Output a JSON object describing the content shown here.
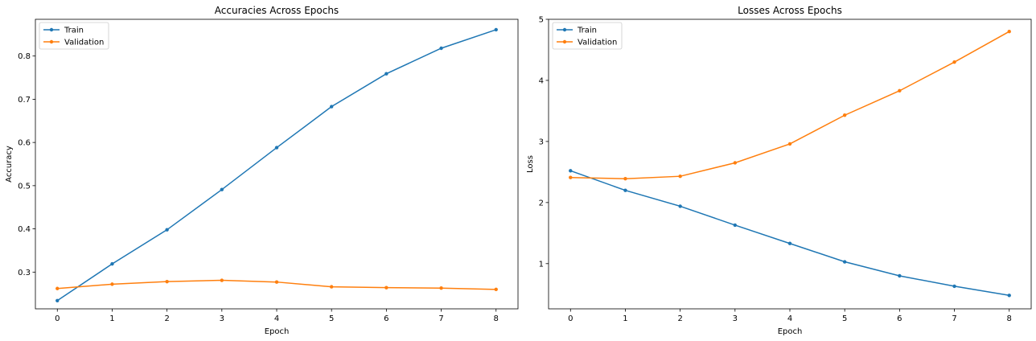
{
  "chart_data": [
    {
      "type": "line",
      "title": "Accuracies Across Epochs",
      "xlabel": "Epoch",
      "ylabel": "Accuracy",
      "x": [
        0,
        1,
        2,
        3,
        4,
        5,
        6,
        7,
        8
      ],
      "xlim": [
        -0.4,
        8.4
      ],
      "ylim": [
        0.215,
        0.885
      ],
      "xticks": [
        0,
        1,
        2,
        3,
        4,
        5,
        6,
        7,
        8
      ],
      "yticks": [
        0.3,
        0.4,
        0.5,
        0.6,
        0.7,
        0.8
      ],
      "grid": false,
      "legend_position": "top-left",
      "series": [
        {
          "name": "Train",
          "color": "#1f77b4",
          "values": [
            0.234,
            0.319,
            0.398,
            0.491,
            0.588,
            0.683,
            0.759,
            0.818,
            0.861
          ]
        },
        {
          "name": "Validation",
          "color": "#ff7f0e",
          "values": [
            0.262,
            0.272,
            0.278,
            0.281,
            0.277,
            0.266,
            0.264,
            0.263,
            0.26
          ]
        }
      ]
    },
    {
      "type": "line",
      "title": "Losses Across Epochs",
      "xlabel": "Epoch",
      "ylabel": "Loss",
      "x": [
        0,
        1,
        2,
        3,
        4,
        5,
        6,
        7,
        8
      ],
      "xlim": [
        -0.4,
        8.4
      ],
      "ylim": [
        0.26,
        5.0
      ],
      "xticks": [
        0,
        1,
        2,
        3,
        4,
        5,
        6,
        7,
        8
      ],
      "yticks": [
        1,
        2,
        3,
        4,
        5
      ],
      "grid": false,
      "legend_position": "top-left",
      "series": [
        {
          "name": "Train",
          "color": "#1f77b4",
          "values": [
            2.52,
            2.2,
            1.94,
            1.63,
            1.33,
            1.03,
            0.8,
            0.63,
            0.48
          ]
        },
        {
          "name": "Validation",
          "color": "#ff7f0e",
          "values": [
            2.41,
            2.39,
            2.43,
            2.65,
            2.96,
            3.43,
            3.83,
            4.3,
            4.8
          ]
        }
      ]
    }
  ]
}
